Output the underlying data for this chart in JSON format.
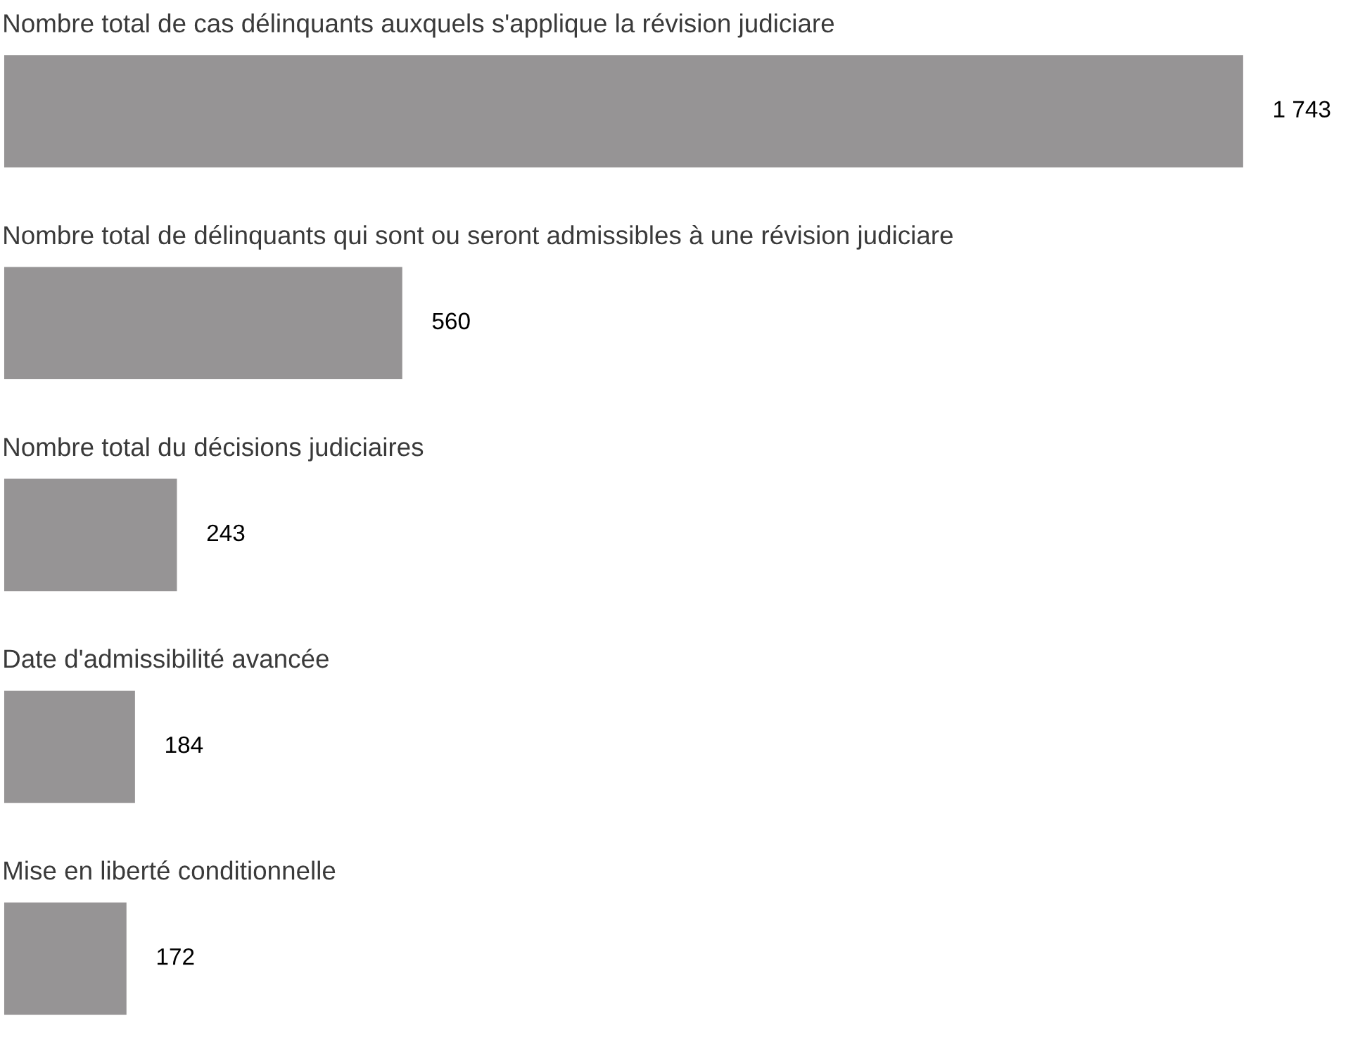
{
  "chart_data": {
    "type": "bar",
    "orientation": "horizontal",
    "categories": [
      "Nombre total de cas délinquants auxquels s'applique la révision judiciare",
      "Nombre total de délinquants qui sont ou seront admissibles à une révision judiciare",
      "Nombre total du décisions judiciaires",
      "Date d'admissibilité avancée",
      "Mise en liberté conditionnelle"
    ],
    "values": [
      1743,
      560,
      243,
      184,
      172
    ],
    "color": "#969495",
    "value_labels": [
      "1 743",
      "560",
      "243",
      "184",
      "172"
    ],
    "tick_labels": "y"
  }
}
